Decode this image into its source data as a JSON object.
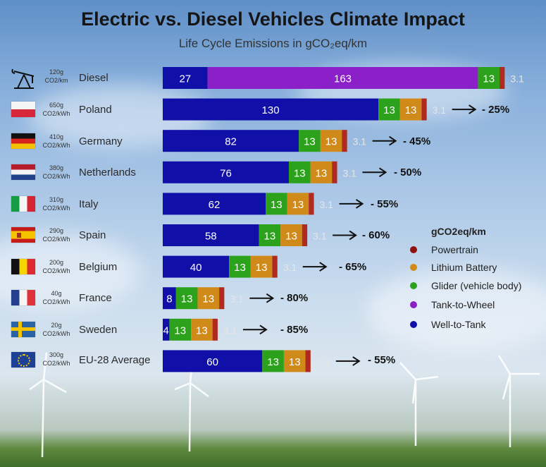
{
  "title": "Electric vs. Diesel Vehicles Climate Impact",
  "subtitle": "Life Cycle Emissions in gCO₂eq/km",
  "colors": {
    "well_to_tank": "#1010a8",
    "tank_to_wheel": "#8b1fc8",
    "glider": "#2ca21c",
    "battery": "#cf8a1a",
    "powertrain": "#b02a1f",
    "powertrain_label": "#e6e6e6"
  },
  "legend": {
    "title": "gCO2eq/km",
    "items": [
      {
        "label": "Powertrain",
        "color": "#8f1010"
      },
      {
        "label": "Lithium Battery",
        "color": "#cf8a1a"
      },
      {
        "label": "Glider (vehicle body)",
        "color": "#2ca21c"
      },
      {
        "label": "Tank-to-Wheel",
        "color": "#8b1fc8"
      },
      {
        "label": "Well-to-Tank",
        "color": "#1010a8"
      }
    ]
  },
  "rows": [
    {
      "name": "Diesel",
      "intensity": "120g",
      "unit": "CO2/km",
      "icon": "oil-pump-icon",
      "reduction": ""
    },
    {
      "name": "Poland",
      "intensity": "650g",
      "unit": "CO2/kWh",
      "icon": "poland-flag-icon",
      "reduction": "- 25%"
    },
    {
      "name": "Germany",
      "intensity": "410g",
      "unit": "CO2/kWh",
      "icon": "germany-flag-icon",
      "reduction": "- 45%"
    },
    {
      "name": "Netherlands",
      "intensity": "380g",
      "unit": "CO2/kWh",
      "icon": "netherlands-flag-icon",
      "reduction": "- 50%"
    },
    {
      "name": "Italy",
      "intensity": "310g",
      "unit": "CO2/kWh",
      "icon": "italy-flag-icon",
      "reduction": "- 55%"
    },
    {
      "name": "Spain",
      "intensity": "290g",
      "unit": "CO2/kWh",
      "icon": "spain-flag-icon",
      "reduction": "- 60%"
    },
    {
      "name": "Belgium",
      "intensity": "200g",
      "unit": "CO2/kWh",
      "icon": "belgium-flag-icon",
      "reduction": "- 65%"
    },
    {
      "name": "France",
      "intensity": "40g",
      "unit": "CO2/kWh",
      "icon": "france-flag-icon",
      "reduction": "- 80%"
    },
    {
      "name": "Sweden",
      "intensity": "20g",
      "unit": "CO2/kWh",
      "icon": "sweden-flag-icon",
      "reduction": "- 85%"
    },
    {
      "name": "EU-28 Average",
      "intensity": "300g",
      "unit": "CO2/kWh",
      "icon": "eu-flag-icon",
      "reduction": "- 55%"
    }
  ],
  "chart_data": {
    "type": "bar",
    "orientation": "horizontal",
    "stacked": true,
    "title": "Electric vs. Diesel Vehicles Climate Impact",
    "subtitle": "Life Cycle Emissions in gCO₂eq/km",
    "categories": [
      "Diesel",
      "Poland",
      "Germany",
      "Netherlands",
      "Italy",
      "Spain",
      "Belgium",
      "France",
      "Sweden",
      "EU-28 Average"
    ],
    "series": [
      {
        "name": "Well-to-Tank",
        "values": [
          27,
          130,
          82,
          76,
          62,
          58,
          40,
          8,
          4,
          60
        ]
      },
      {
        "name": "Tank-to-Wheel",
        "values": [
          163,
          0,
          0,
          0,
          0,
          0,
          0,
          0,
          0,
          0
        ]
      },
      {
        "name": "Glider (vehicle body)",
        "values": [
          13,
          13,
          13,
          13,
          13,
          13,
          13,
          13,
          13,
          13
        ]
      },
      {
        "name": "Lithium Battery",
        "values": [
          0,
          13,
          13,
          13,
          13,
          13,
          13,
          13,
          13,
          13
        ]
      },
      {
        "name": "Powertrain",
        "values": [
          3.1,
          3.1,
          3.1,
          3.1,
          3.1,
          3.1,
          3.1,
          3.1,
          3.1,
          3.1
        ]
      }
    ],
    "legend_title": "gCO2eq/km",
    "legend_position": "right",
    "reductions": [
      "",
      "- 25%",
      "- 45%",
      "- 50%",
      "- 55%",
      "- 60%",
      "- 65%",
      "- 80%",
      "- 85%",
      "- 55%"
    ],
    "grid": false
  }
}
